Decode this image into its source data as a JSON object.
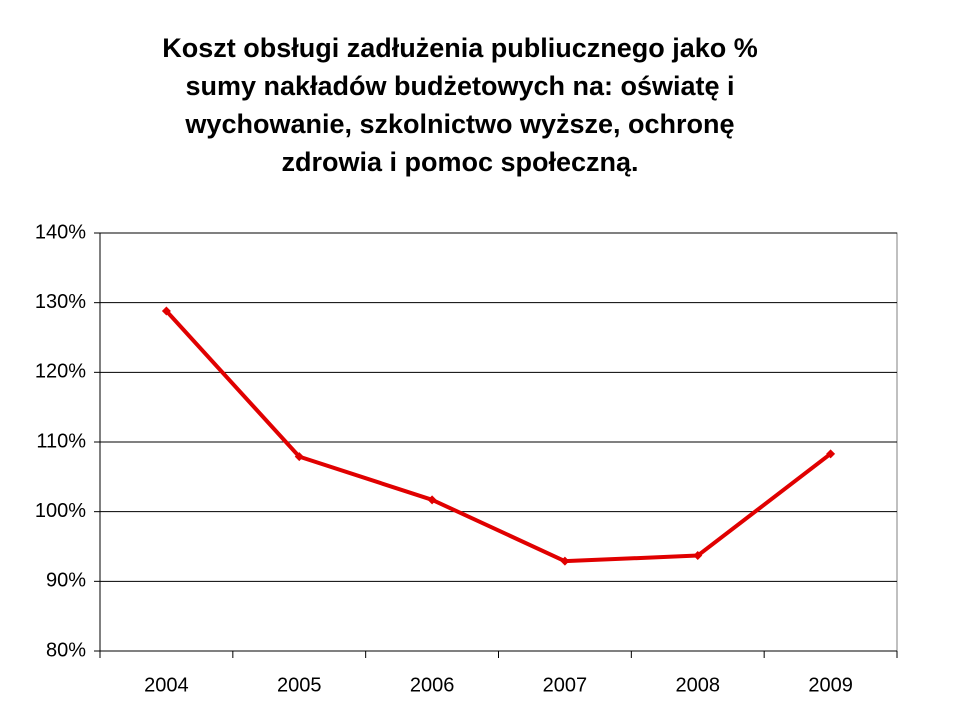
{
  "chart_data": {
    "type": "line",
    "title": [
      "Koszt obsługi zadłużenia publiucznego jako %",
      "sumy nakładów budżetowych na: oświatę i",
      "wychowanie, szkolnictwo wyższe, ochronę",
      "zdrowia i pomoc społeczną."
    ],
    "categories": [
      "2004",
      "2005",
      "2006",
      "2007",
      "2008",
      "2009"
    ],
    "values": [
      128.8,
      107.9,
      101.7,
      92.9,
      93.7,
      108.3
    ],
    "color": "#e00000",
    "ylim": [
      80,
      140
    ],
    "yticks": [
      {
        "value": 80,
        "label": "80%"
      },
      {
        "value": 90,
        "label": "90%"
      },
      {
        "value": 100,
        "label": "100%"
      },
      {
        "value": 110,
        "label": "110%"
      },
      {
        "value": 120,
        "label": "120%"
      },
      {
        "value": 130,
        "label": "130%"
      },
      {
        "value": 140,
        "label": "140%"
      }
    ],
    "grid": true
  }
}
